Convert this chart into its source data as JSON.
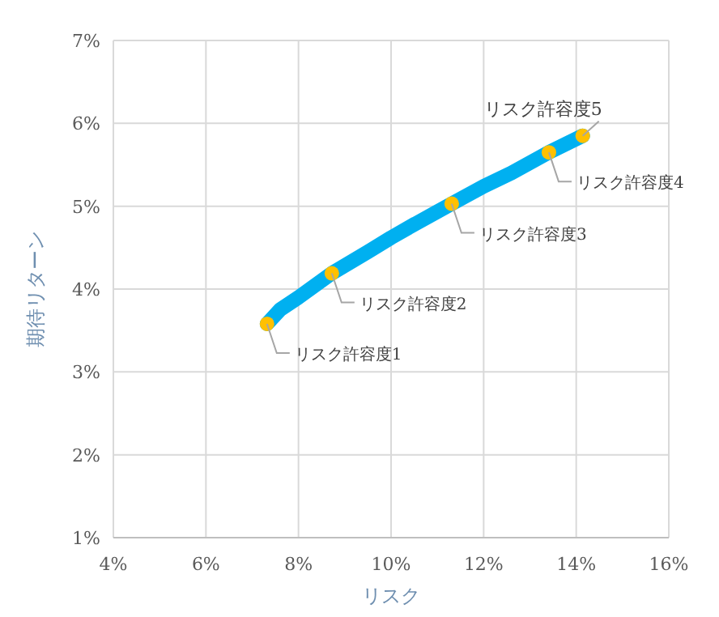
{
  "chart_data": {
    "type": "line",
    "xlabel": "リスク",
    "ylabel": "期待リターン",
    "xlim": [
      4,
      16
    ],
    "xticks": [
      {
        "value": 4,
        "label": "4%"
      },
      {
        "value": 6,
        "label": "6%"
      },
      {
        "value": 8,
        "label": "8%"
      },
      {
        "value": 10,
        "label": "10%"
      },
      {
        "value": 12,
        "label": "12%"
      },
      {
        "value": 14,
        "label": "14%"
      },
      {
        "value": 16,
        "label": "16%"
      }
    ],
    "ylim": [
      1,
      7
    ],
    "yticks": [
      {
        "value": 1,
        "label": "1%"
      },
      {
        "value": 2,
        "label": "2%"
      },
      {
        "value": 3,
        "label": "3%"
      },
      {
        "value": 4,
        "label": "4%"
      },
      {
        "value": 5,
        "label": "5%"
      },
      {
        "value": 6,
        "label": "6%"
      },
      {
        "value": 7,
        "label": "7%"
      }
    ],
    "grid": true,
    "series": [
      {
        "color": "#00b0f0",
        "x": [
          7.32,
          7.6,
          8.0,
          8.72,
          9.5,
          10.0,
          10.5,
          11.31,
          12.0,
          12.6,
          13.41,
          14.14
        ],
        "values": [
          3.58,
          3.75,
          3.9,
          4.19,
          4.45,
          4.62,
          4.78,
          5.03,
          5.24,
          5.4,
          5.65,
          5.85
        ]
      },
      {
        "type": "scatter",
        "color": "#ffc000",
        "marker": "circle",
        "x": [
          7.32,
          8.72,
          11.31,
          13.41,
          14.14
        ],
        "values": [
          3.58,
          4.19,
          5.03,
          5.65,
          5.85
        ]
      }
    ],
    "annotations": [
      {
        "text": "リスク許容度1",
        "x": 7.32,
        "y": 3.58
      },
      {
        "text": "リスク許容度2",
        "x": 8.72,
        "y": 4.19
      },
      {
        "text": "リスク許容度3",
        "x": 11.31,
        "y": 5.03
      },
      {
        "text": "リスク許容度4",
        "x": 13.41,
        "y": 5.65
      },
      {
        "text": "リスク許容度5",
        "x": 14.14,
        "y": 5.85
      }
    ]
  }
}
